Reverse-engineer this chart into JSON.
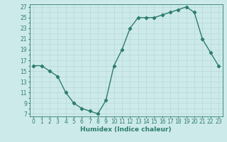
{
  "x": [
    0,
    1,
    2,
    3,
    4,
    5,
    6,
    7,
    8,
    9,
    10,
    11,
    12,
    13,
    14,
    15,
    16,
    17,
    18,
    19,
    20,
    21,
    22,
    23
  ],
  "y": [
    16,
    16,
    15,
    14,
    11,
    9,
    8,
    7.5,
    7,
    9.5,
    16,
    19,
    23,
    25,
    25,
    25,
    25.5,
    26,
    26.5,
    27,
    26,
    21,
    18.5,
    16
  ],
  "line_color": "#2e7d6e",
  "marker": "D",
  "marker_size": 2.2,
  "bg_color": "#cdeaea",
  "grid_color": "#b8d8d8",
  "xlabel": "Humidex (Indice chaleur)",
  "xlim": [
    -0.5,
    23.5
  ],
  "ylim": [
    6.5,
    27.5
  ],
  "yticks": [
    7,
    9,
    11,
    13,
    15,
    17,
    19,
    21,
    23,
    25,
    27
  ],
  "xticks": [
    0,
    1,
    2,
    3,
    4,
    5,
    6,
    7,
    8,
    9,
    10,
    11,
    12,
    13,
    14,
    15,
    16,
    17,
    18,
    19,
    20,
    21,
    22,
    23
  ],
  "xlabel_fontsize": 6.5,
  "tick_fontsize": 5.5,
  "line_width": 1.0
}
